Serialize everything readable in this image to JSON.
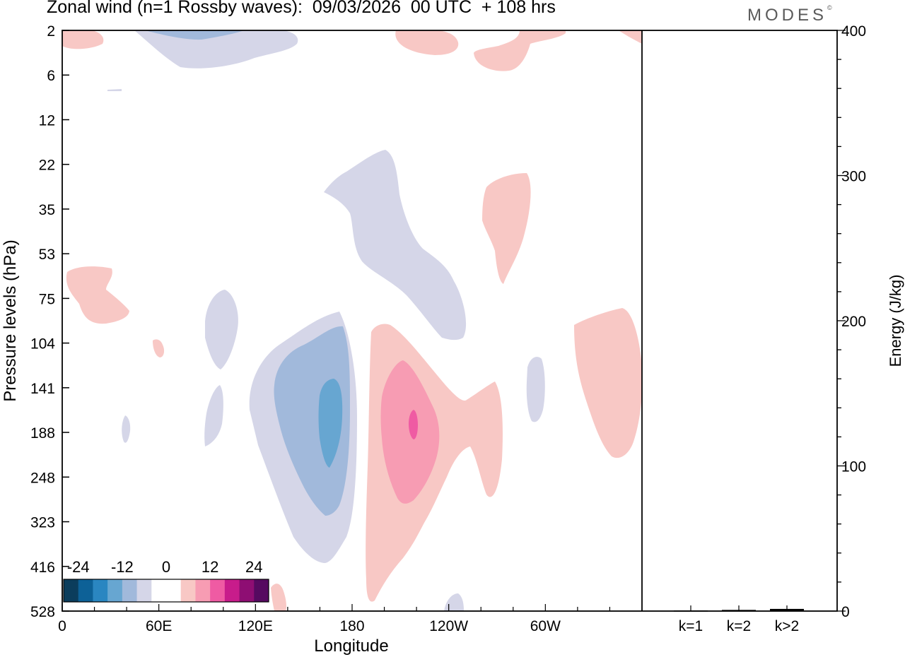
{
  "header": {
    "title": "Zonal wind (n=1 Rossby waves):  09/03/2026  00 UTC  + 108 hrs",
    "logo": "MODES",
    "logo_mark": "©"
  },
  "chart_data": [
    {
      "type": "heatmap",
      "title": "Zonal wind (n=1 Rossby waves):  09/03/2026  00 UTC  + 108 hrs",
      "xlabel": "Longitude",
      "ylabel": "Pressure levels (hPa)",
      "x_ticks": [
        "0",
        "60E",
        "120E",
        "180",
        "120W",
        "60W"
      ],
      "x_range_deg_east": [
        0,
        360
      ],
      "y_ticks": [
        "2",
        "6",
        "12",
        "22",
        "35",
        "53",
        "75",
        "104",
        "141",
        "188",
        "248",
        "323",
        "416",
        "528"
      ],
      "y_scale": "pressure levels (log-like), top to bottom",
      "colorbar": {
        "tick_labels": [
          "-24",
          "-12",
          "0",
          "12",
          "24"
        ],
        "colors": [
          "#0b3d5c",
          "#0d6197",
          "#2a86c1",
          "#67a6d1",
          "#a1b9db",
          "#d5d6e8",
          "#ffffff",
          "#ffffff",
          "#f8c8c5",
          "#f79cb3",
          "#ef5ba3",
          "#c81c8b",
          "#8e0e73",
          "#560a60"
        ]
      },
      "features": [
        {
          "sign": "negative",
          "max_magnitude": "-12 to -16",
          "lon": "175E",
          "level_hPa": "141-248"
        },
        {
          "sign": "positive",
          "max_magnitude": "16 to 20",
          "lon": "143W",
          "level_hPa": "141-248"
        },
        {
          "sign": "negative",
          "max_magnitude": "-4 to -8",
          "lon": "80E",
          "level_hPa": "2-6"
        },
        {
          "sign": "negative",
          "max_magnitude": "0 to -4",
          "lon": "165W",
          "level_hPa": "22-104"
        },
        {
          "sign": "positive",
          "max_magnitude": "0 to 4",
          "lon": "88W",
          "level_hPa": "22-75"
        },
        {
          "sign": "positive",
          "max_magnitude": "0 to 4",
          "lon": "25W",
          "level_hPa": "104-188"
        }
      ]
    },
    {
      "type": "bar",
      "ylabel": "Energy (J/kg)",
      "categories": [
        "k=1",
        "k=2",
        "k>2"
      ],
      "values": [
        0.4,
        0.8,
        1.5
      ],
      "ylim": [
        0,
        400
      ],
      "y_ticks": [
        "0",
        "100",
        "200",
        "300",
        "400"
      ]
    }
  ]
}
